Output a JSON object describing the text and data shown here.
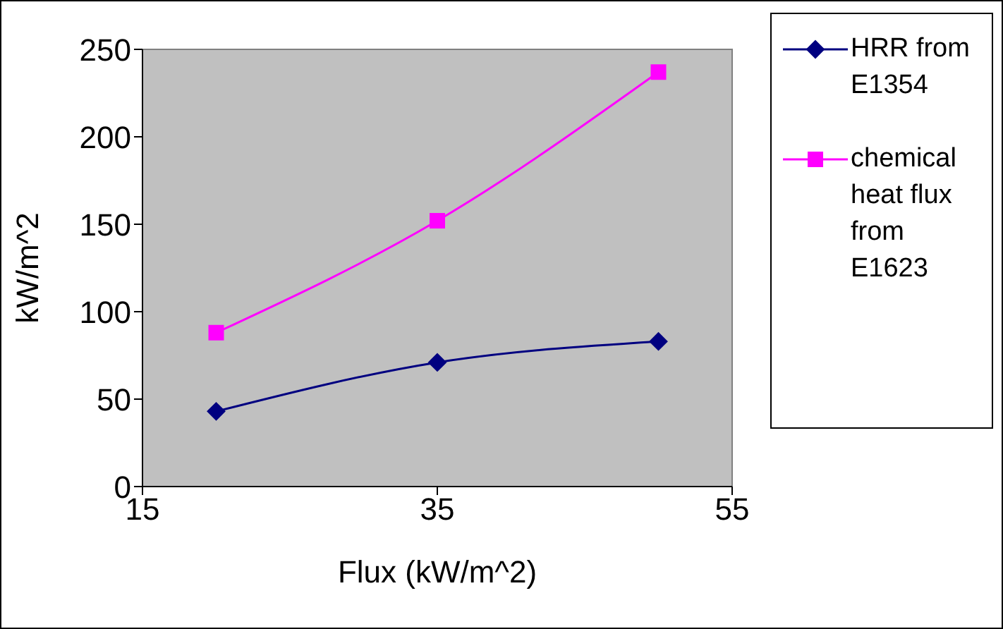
{
  "chart_data": {
    "type": "line",
    "xlabel": "Flux (kW/m^2)",
    "ylabel": "kW/m^2",
    "xlim": [
      15,
      55
    ],
    "xticks": [
      15,
      35,
      55
    ],
    "ylim": [
      0,
      250
    ],
    "yticks": [
      0,
      50,
      100,
      150,
      200,
      250
    ],
    "legend": "right",
    "x": [
      20,
      35,
      50
    ],
    "series": [
      {
        "name": "HRR from E1354",
        "color": "#000080",
        "values": [
          43,
          71,
          83
        ],
        "marker": "diamond"
      },
      {
        "name": "chemical heat flux from E1623",
        "color": "#ff00ff",
        "values": [
          88,
          152,
          237
        ],
        "marker": "square"
      }
    ]
  }
}
